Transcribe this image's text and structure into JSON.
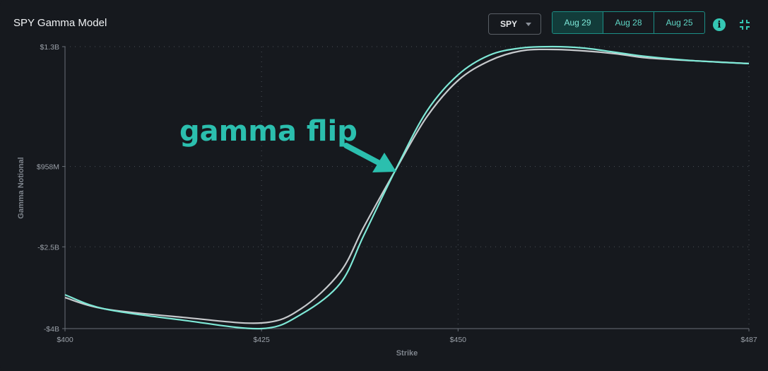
{
  "header": {
    "title": "SPY Gamma Model",
    "ticker": "SPY",
    "dates": [
      "Aug 29",
      "Aug 28",
      "Aug 25"
    ],
    "active_date": "Aug 29"
  },
  "icons": {
    "info": "info-icon",
    "collapse": "collapse-icon"
  },
  "chart_data": {
    "type": "line",
    "xlabel": "Strike",
    "ylabel": "Gamma Notional",
    "x_ticks": [
      "$400",
      "$425",
      "$450",
      "$487"
    ],
    "y_ticks": [
      "$1.3B",
      "$958M",
      "-$2.5B",
      "-$4B"
    ],
    "xlim": [
      400,
      487
    ],
    "grid": true,
    "annotation": "gamma flip",
    "series": [
      {
        "color": "#7ee8d6",
        "values": [
          0.12,
          0.07,
          0.03,
          0.0,
          0.05,
          0.16,
          0.33,
          0.56,
          0.77,
          0.9,
          0.97,
          0.995,
          1.0,
          0.995,
          0.98,
          0.965,
          0.95,
          0.94
        ]
      },
      {
        "color": "#c6c9cc",
        "values": [
          0.11,
          0.07,
          0.04,
          0.02,
          0.07,
          0.2,
          0.36,
          0.56,
          0.75,
          0.88,
          0.95,
          0.985,
          0.99,
          0.985,
          0.975,
          0.96,
          0.95,
          0.94
        ]
      }
    ],
    "x": [
      400,
      405,
      415,
      425,
      430,
      435,
      438,
      442,
      446,
      450,
      454,
      458,
      462,
      466,
      470,
      474,
      480,
      487
    ]
  }
}
